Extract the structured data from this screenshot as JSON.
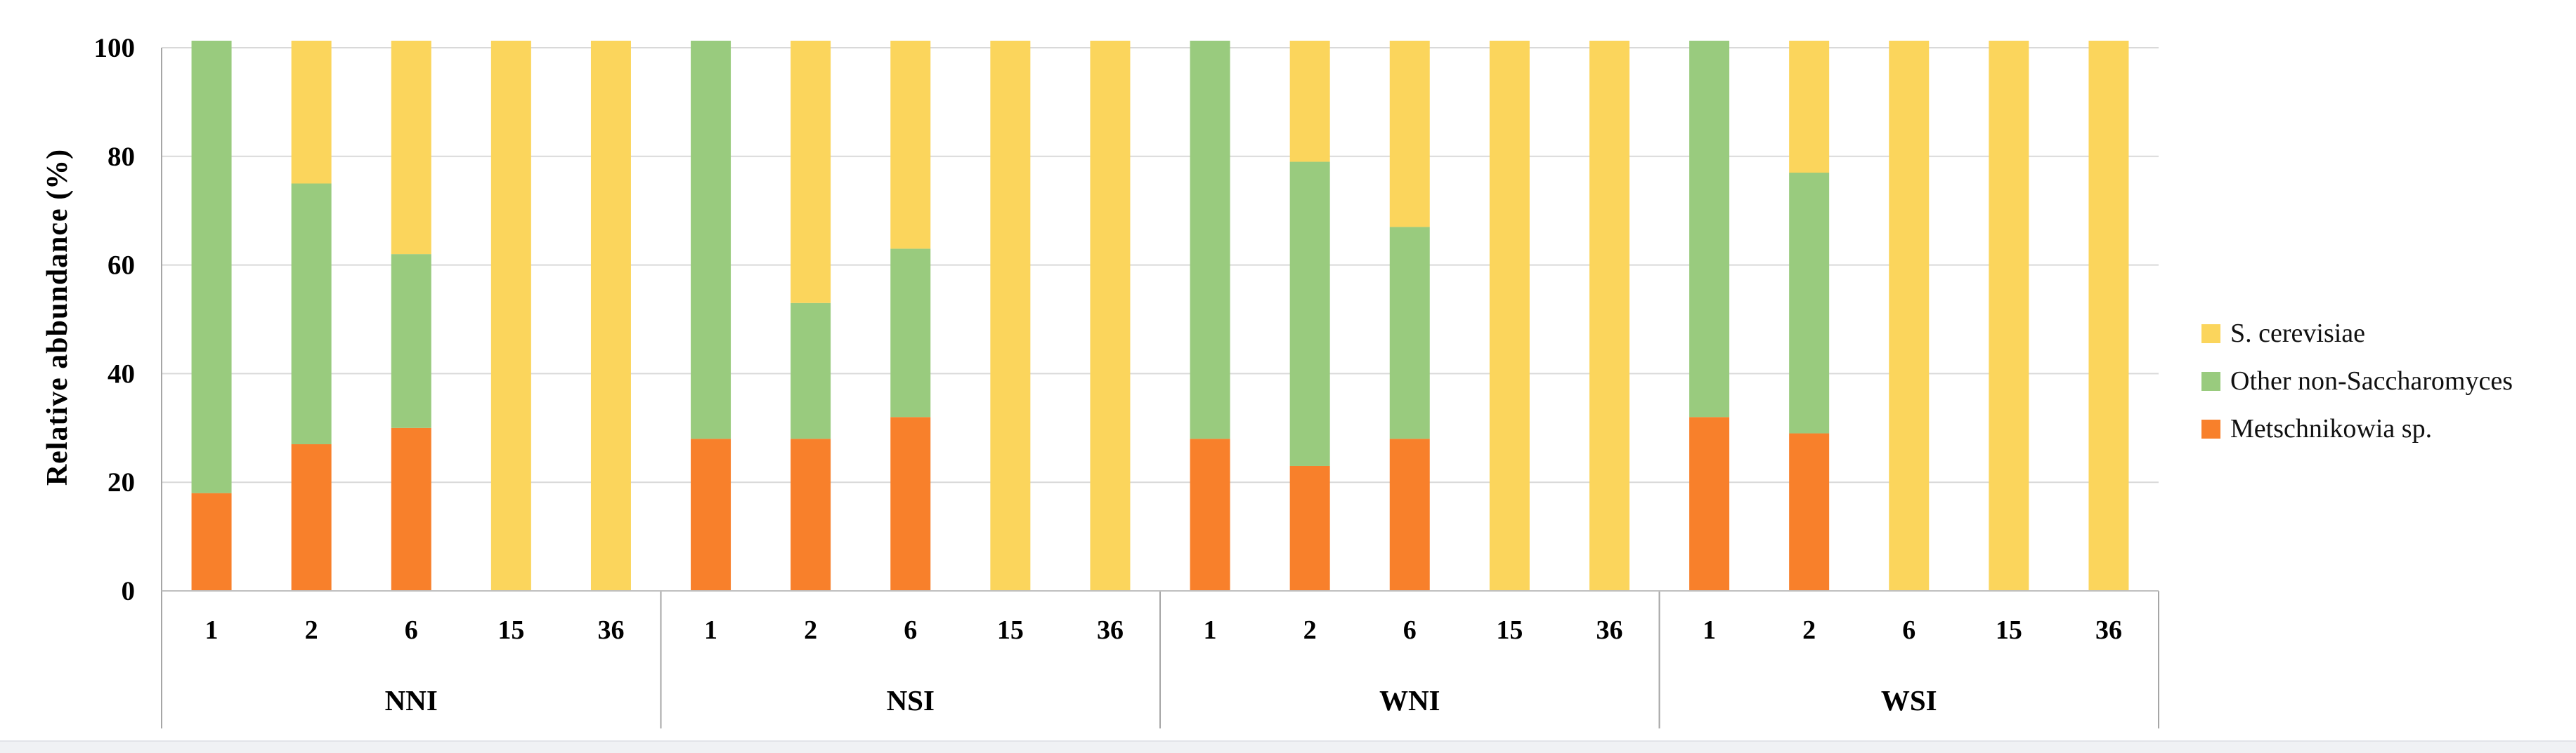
{
  "chart_data": {
    "type": "bar",
    "stacked": true,
    "y_axis_title": "Relative abbundance (%)",
    "ylim": [
      0,
      100
    ],
    "yticks": [
      0,
      20,
      40,
      60,
      80,
      100
    ],
    "grid": true,
    "legend_position": "right",
    "stack_order_bottom_to_top": [
      "Metschnikowia sp.",
      "Other non-Saccharomyces",
      "S. cerevisiae"
    ],
    "series": [
      {
        "name": "S. cerevisiae",
        "color": "#FBD55C"
      },
      {
        "name": "Other non-Saccharomyces",
        "color": "#99CB7E"
      },
      {
        "name": "Metschnikowia sp.",
        "color": "#F8802B"
      }
    ],
    "groups": [
      {
        "label": "NNI",
        "categories": [
          "1",
          "2",
          "6",
          "15",
          "36"
        ],
        "series_values": {
          "Metschnikowia sp.": [
            18,
            27,
            30,
            0,
            0
          ],
          "Other non-Saccharomyces": [
            82,
            48,
            32,
            0,
            0
          ],
          "S. cerevisiae": [
            0,
            25,
            38,
            100,
            100
          ]
        }
      },
      {
        "label": "NSI",
        "categories": [
          "1",
          "2",
          "6",
          "15",
          "36"
        ],
        "series_values": {
          "Metschnikowia sp.": [
            28,
            28,
            32,
            0,
            0
          ],
          "Other non-Saccharomyces": [
            72,
            25,
            31,
            0,
            0
          ],
          "S. cerevisiae": [
            0,
            47,
            37,
            100,
            100
          ]
        }
      },
      {
        "label": "WNI",
        "categories": [
          "1",
          "2",
          "6",
          "15",
          "36"
        ],
        "series_values": {
          "Metschnikowia sp.": [
            28,
            23,
            28,
            0,
            0
          ],
          "Other non-Saccharomyces": [
            72,
            56,
            39,
            0,
            0
          ],
          "S. cerevisiae": [
            0,
            21,
            33,
            100,
            100
          ]
        }
      },
      {
        "label": "WSI",
        "categories": [
          "1",
          "2",
          "6",
          "15",
          "36"
        ],
        "series_values": {
          "Metschnikowia sp.": [
            32,
            29,
            0,
            0,
            0
          ],
          "Other non-Saccharomyces": [
            68,
            48,
            0,
            0,
            0
          ],
          "S. cerevisiae": [
            0,
            23,
            100,
            100,
            100
          ]
        }
      }
    ]
  },
  "colors": {
    "gridline": "#d9d9d9",
    "axis_line": "#bfbfbf",
    "separator_line": "#a6a6a6",
    "text": "#000000",
    "footer_strip": "#f0f1f4"
  }
}
